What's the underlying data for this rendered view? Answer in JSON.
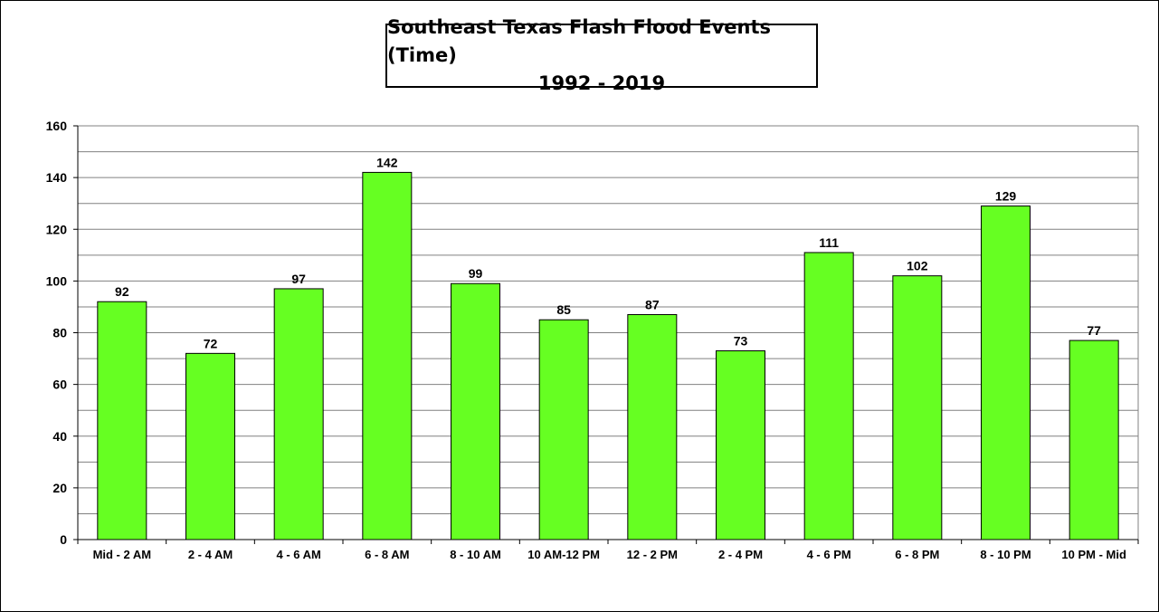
{
  "chart_data": {
    "type": "bar",
    "title": "Southeast Texas Flash Flood Events (Time)",
    "subtitle": "1992 - 2019",
    "xlabel": "",
    "ylabel": "",
    "categories": [
      "Mid - 2 AM",
      "2 - 4 AM",
      "4 - 6 AM",
      "6 - 8 AM",
      "8 - 10 AM",
      "10 AM-12 PM",
      "12 - 2 PM",
      "2 - 4 PM",
      "4 - 6 PM",
      "6 - 8 PM",
      "8 - 10 PM",
      "10 PM - Mid"
    ],
    "values": [
      92,
      72,
      97,
      142,
      99,
      85,
      87,
      73,
      111,
      102,
      129,
      77
    ],
    "ylim": [
      0,
      160
    ],
    "yticks": [
      0,
      20,
      40,
      60,
      80,
      100,
      120,
      140,
      160
    ],
    "grid": true,
    "legend": "none",
    "bar_color": "#66ff22",
    "bar_edge_color": "#000000",
    "grid_color": "#808080"
  }
}
